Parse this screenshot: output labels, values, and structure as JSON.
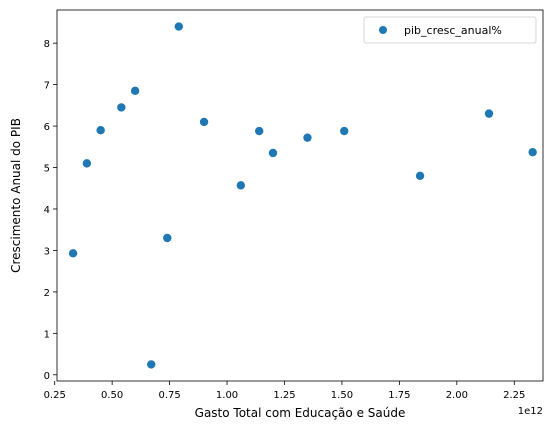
{
  "chart_data": {
    "type": "scatter",
    "xlabel": "Gasto Total com Educação e Saúde",
    "ylabel": "Crescimento Anual do PIB",
    "x_offset_label": "1e12",
    "xlim": [
      0.26,
      2.375
    ],
    "ylim": [
      -0.15,
      8.8
    ],
    "xticks": [
      0.25,
      0.5,
      0.75,
      1.0,
      1.25,
      1.5,
      1.75,
      2.0,
      2.25
    ],
    "xtick_labels": [
      "0.25",
      "0.50",
      "0.75",
      "1.00",
      "1.25",
      "1.50",
      "1.75",
      "2.00",
      "2.25"
    ],
    "yticks": [
      0,
      1,
      2,
      3,
      4,
      5,
      6,
      7,
      8
    ],
    "ytick_labels": [
      "0",
      "1",
      "2",
      "3",
      "4",
      "5",
      "6",
      "7",
      "8"
    ],
    "grid": false,
    "legend_position": "top-right",
    "series": [
      {
        "name": "pib_cresc_anual%",
        "color": "#1f77b4",
        "marker": "circle",
        "x": [
          0.33,
          0.39,
          0.45,
          0.54,
          0.6,
          0.67,
          0.74,
          0.79,
          0.9,
          1.06,
          1.14,
          1.2,
          1.35,
          1.51,
          1.84,
          2.14,
          2.33
        ],
        "y": [
          2.93,
          5.1,
          5.9,
          6.45,
          6.85,
          0.25,
          3.3,
          8.4,
          6.1,
          4.57,
          5.88,
          5.35,
          5.72,
          5.88,
          4.8,
          6.3,
          5.37
        ]
      }
    ]
  }
}
